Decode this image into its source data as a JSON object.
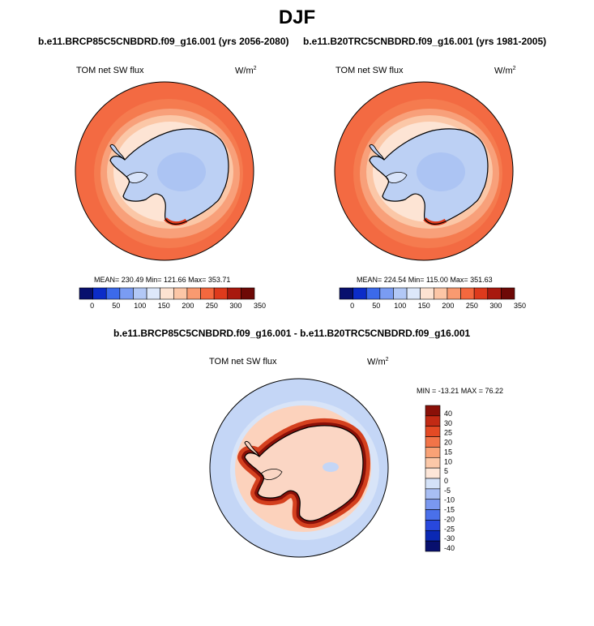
{
  "page": {
    "title": "DJF",
    "diff_title": "b.e11.BRCP85C5CNBDRD.f09_g16.001 - b.e11.B20TRC5CNBDRD.f09_g16.001"
  },
  "colors": {
    "seq_scale": [
      "#08106e",
      "#0c2cc8",
      "#3c6aea",
      "#7a9cf2",
      "#b2c8f6",
      "#dde8fa",
      "#fde3d2",
      "#fcc6a6",
      "#f99a70",
      "#f4683e",
      "#de3a1c",
      "#a8190e",
      "#6e0906"
    ],
    "div_scale": [
      "#08106e",
      "#0a28b4",
      "#2848de",
      "#4a70ea",
      "#7a98f0",
      "#a8bef4",
      "#d4e2f8",
      "#fde6d8",
      "#fcc8a8",
      "#f9a276",
      "#f27448",
      "#e44a24",
      "#c22a14",
      "#8a1008"
    ],
    "ocean_fill": "#f36a42",
    "ocean_mid": "#f8a07a",
    "ice_fill": "#bcd0f4",
    "diff_ocean": "#c4d6f6",
    "diff_land": "#fbd6c4",
    "diff_ring": "#d4401e"
  },
  "chart_data": [
    {
      "type": "heatmap",
      "projection": "south-polar-stereographic",
      "title": "b.e11.BRCP85C5CNBDRD.f09_g16.001 (yrs 2056-2080)",
      "left_label": "TOM net SW flux",
      "units": "W/m",
      "units_sup": "2",
      "stats": "MEAN= 230.49  Min= 121.66  Max= 353.71",
      "mean": 230.49,
      "min": 121.66,
      "max": 353.71,
      "colorbar": {
        "orientation": "horizontal",
        "tick_labels": [
          "0",
          "50",
          "100",
          "150",
          "200",
          "250",
          "300",
          "350"
        ],
        "levels": [
          0,
          25,
          50,
          75,
          100,
          125,
          150,
          175,
          200,
          225,
          250,
          275,
          300,
          325,
          350
        ]
      }
    },
    {
      "type": "heatmap",
      "projection": "south-polar-stereographic",
      "title": "b.e11.B20TRC5CNBDRD.f09_g16.001 (yrs 1981-2005)",
      "left_label": "TOM net SW flux",
      "units": "W/m",
      "units_sup": "2",
      "stats": "MEAN= 224.54  Min= 115.00  Max= 351.63",
      "mean": 224.54,
      "min": 115.0,
      "max": 351.63,
      "colorbar": {
        "orientation": "horizontal",
        "tick_labels": [
          "0",
          "50",
          "100",
          "150",
          "200",
          "250",
          "300",
          "350"
        ],
        "levels": [
          0,
          25,
          50,
          75,
          100,
          125,
          150,
          175,
          200,
          225,
          250,
          275,
          300,
          325,
          350
        ]
      }
    },
    {
      "type": "heatmap",
      "projection": "south-polar-stereographic",
      "title": "b.e11.BRCP85C5CNBDRD.f09_g16.001 - b.e11.B20TRC5CNBDRD.f09_g16.001",
      "left_label": "TOM net SW flux",
      "units": "W/m",
      "units_sup": "2",
      "stats": "MIN = -13.21  MAX =  76.22",
      "min": -13.21,
      "max": 76.22,
      "colorbar": {
        "orientation": "vertical",
        "tick_labels": [
          "40",
          "30",
          "25",
          "20",
          "15",
          "10",
          "5",
          "0",
          "-5",
          "-10",
          "-15",
          "-20",
          "-25",
          "-30",
          "-40"
        ]
      }
    }
  ]
}
